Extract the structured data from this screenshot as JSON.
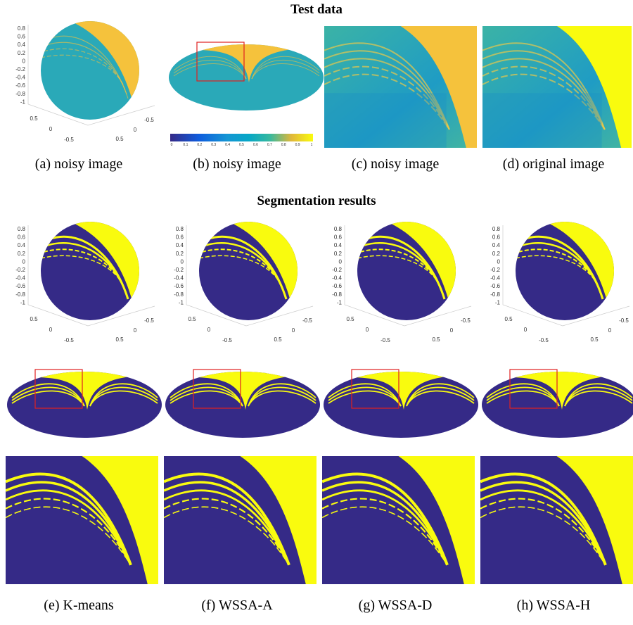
{
  "sections": [
    {
      "title": "Test data"
    },
    {
      "title": "Segmentation results"
    }
  ],
  "captions": {
    "test": [
      "(a) noisy image",
      "(b) noisy image",
      "(c) noisy image",
      "(d) original image"
    ],
    "results": [
      "(e) K-means",
      "(f) WSSA-A",
      "(g) WSSA-D",
      "(h) WSSA-H"
    ]
  },
  "sphere_axis": {
    "z_ticks": [
      "0.8",
      "0.6",
      "0.4",
      "0.2",
      "0",
      "-0.2",
      "-0.4",
      "-0.6",
      "-0.8",
      "-1"
    ],
    "left_ticks": [
      "0.5",
      "0",
      "-0.5"
    ],
    "right_ticks": [
      "-0.5",
      "0",
      "0.5"
    ]
  },
  "colorbar_ticks": [
    "0",
    "0.1",
    "0.2",
    "0.3",
    "0.4",
    "0.5",
    "0.6",
    "0.7",
    "0.8",
    "0.9",
    "1"
  ]
}
